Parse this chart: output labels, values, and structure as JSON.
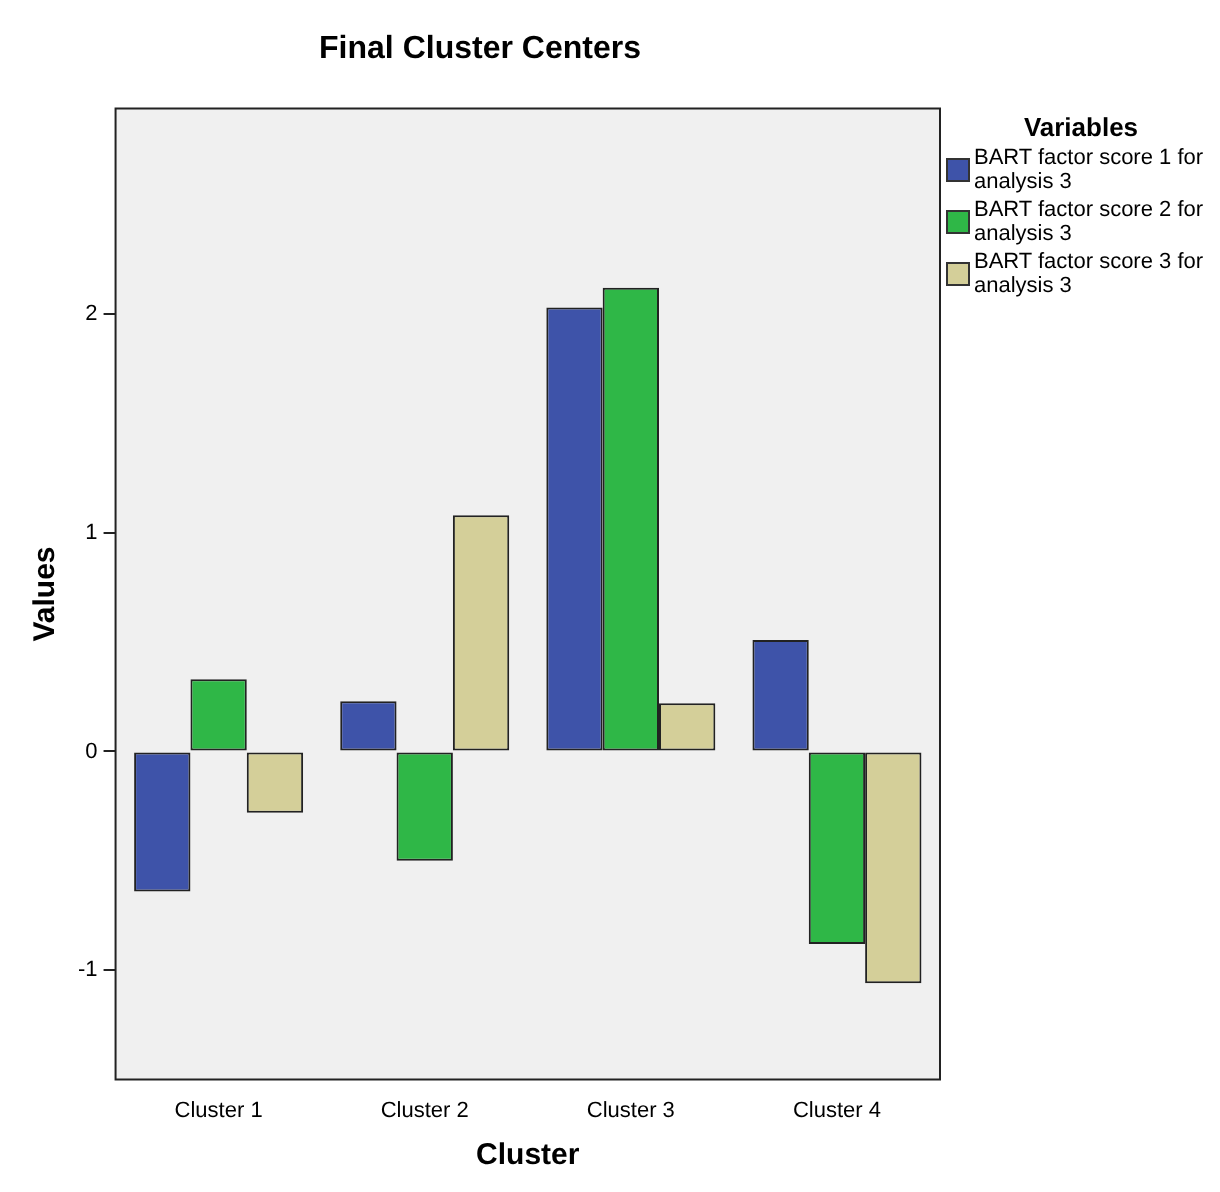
{
  "chart_data": {
    "type": "bar",
    "title": "Final Cluster Centers",
    "xlabel": "Cluster",
    "ylabel": "Values",
    "legend_title": "Variables",
    "categories": [
      "Cluster 1",
      "Cluster 2",
      "Cluster 3",
      "Cluster 4"
    ],
    "series": [
      {
        "name": "BART factor score   1 for analysis 3",
        "color": "#3e53a9",
        "values": [
          -0.64,
          0.23,
          2.03,
          0.51
        ]
      },
      {
        "name": "BART factor score   2 for analysis 3",
        "color": "#2fb747",
        "values": [
          0.33,
          -0.5,
          2.12,
          -0.88
        ]
      },
      {
        "name": "BART factor score   3 for analysis 3",
        "color": "#d4cf99",
        "values": [
          -0.28,
          1.08,
          0.22,
          -1.06
        ]
      }
    ],
    "ylim": [
      -1.5,
      2.94
    ],
    "yticks": [
      -1,
      0,
      1,
      2
    ],
    "grid": false,
    "legend": "right"
  }
}
